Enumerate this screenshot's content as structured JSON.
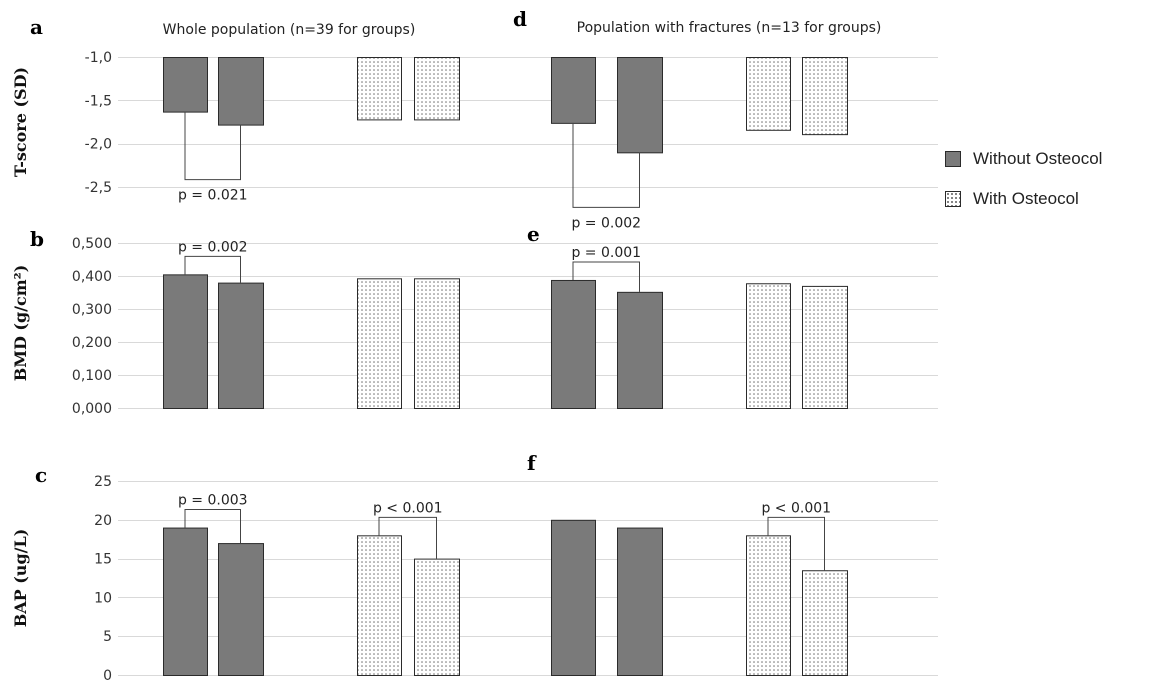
{
  "colors": {
    "without": "#7a7a7a",
    "with": "#ffffff",
    "grid": "#d9d9d9"
  },
  "legend": {
    "without_label": "Without Osteocol",
    "with_label": "With Osteocol"
  },
  "chart_data": [
    {
      "panel": "a",
      "type": "bar",
      "title": "Whole population (n=39 for groups)",
      "ylabel": "T-score (SD)",
      "ylim": [
        -2.5,
        -1.0
      ],
      "yticks": [
        "-1,0",
        "-1,5",
        "-2,0",
        "-2,5"
      ],
      "series": [
        {
          "name": "Without Osteocol",
          "values": [
            -1.63,
            -1.78
          ]
        },
        {
          "name": "With Osteocol",
          "values": [
            -1.72,
            -1.72
          ]
        }
      ],
      "annotations": [
        {
          "text": "p = 0.021",
          "series": 0
        }
      ]
    },
    {
      "panel": "b",
      "type": "bar",
      "title": "",
      "ylabel": "BMD (g/cm²)",
      "ylim": [
        0,
        0.5
      ],
      "yticks": [
        "0,500",
        "0,400",
        "0,300",
        "0,200",
        "0,100",
        "0,000"
      ],
      "series": [
        {
          "name": "Without Osteocol",
          "values": [
            0.405,
            0.38
          ]
        },
        {
          "name": "With Osteocol",
          "values": [
            0.393,
            0.393
          ]
        }
      ],
      "annotations": [
        {
          "text": "p = 0.002",
          "series": 0
        }
      ]
    },
    {
      "panel": "c",
      "type": "bar",
      "title": "",
      "ylabel": "BAP (ug/L)",
      "ylim": [
        0,
        25
      ],
      "yticks": [
        "25",
        "20",
        "15",
        "10",
        "5",
        "0"
      ],
      "series": [
        {
          "name": "Without Osteocol",
          "values": [
            19,
            17
          ]
        },
        {
          "name": "With Osteocol",
          "values": [
            18,
            15
          ]
        }
      ],
      "annotations": [
        {
          "text": "p = 0.003",
          "series": 0
        },
        {
          "text": "p < 0.001",
          "series": 1
        }
      ]
    },
    {
      "panel": "d",
      "type": "bar",
      "title": "Population with fractures (n=13 for groups)",
      "ylabel": "",
      "ylim": [
        -2.5,
        -1.0
      ],
      "series": [
        {
          "name": "Without Osteocol",
          "values": [
            -1.76,
            -2.1
          ]
        },
        {
          "name": "With Osteocol",
          "values": [
            -1.84,
            -1.89
          ]
        }
      ],
      "annotations": [
        {
          "text": "p = 0.002",
          "series": 0
        }
      ]
    },
    {
      "panel": "e",
      "type": "bar",
      "title": "",
      "ylabel": "",
      "ylim": [
        0,
        0.5
      ],
      "series": [
        {
          "name": "Without Osteocol",
          "values": [
            0.388,
            0.352
          ]
        },
        {
          "name": "With Osteocol",
          "values": [
            0.378,
            0.37
          ]
        }
      ],
      "annotations": [
        {
          "text": "p = 0.001",
          "series": 0
        }
      ]
    },
    {
      "panel": "f",
      "type": "bar",
      "title": "",
      "ylabel": "",
      "ylim": [
        0,
        25
      ],
      "series": [
        {
          "name": "Without Osteocol",
          "values": [
            20,
            19
          ]
        },
        {
          "name": "With Osteocol",
          "values": [
            18,
            13.5
          ]
        }
      ],
      "annotations": [
        {
          "text": "p < 0.001",
          "series": 1
        }
      ]
    }
  ]
}
